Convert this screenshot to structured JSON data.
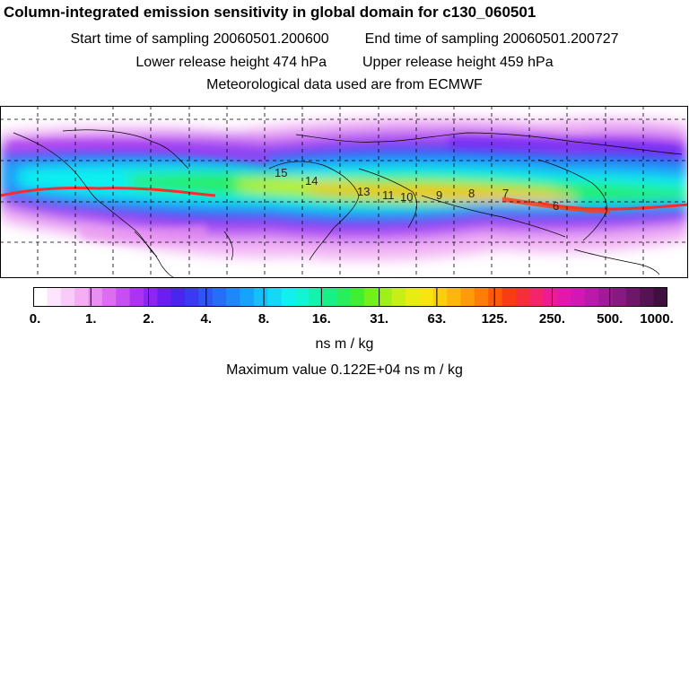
{
  "title": "Column-integrated emission sensitivity in global domain for c130_060501",
  "header": {
    "start_label": "Start time of sampling 20060501.200600",
    "end_label": "End time of sampling 20060501.200727",
    "lower_label": "Lower release height  474 hPa",
    "upper_label": "Upper release height  459 hPa",
    "met_label": "Meteorological data used are from ECMWF"
  },
  "map": {
    "track_color": "#ff2a2a",
    "timestamp_labels": [
      "15",
      "14",
      "13",
      "11",
      "10",
      "9",
      "8",
      "7",
      "6"
    ],
    "grid": "dashed"
  },
  "colorbar": {
    "colors": [
      "#ffffff",
      "#fde6fd",
      "#f9cbf9",
      "#f4aef4",
      "#e98ff0",
      "#dc6cf0",
      "#c74ff1",
      "#ad33f2",
      "#8e26f2",
      "#6a1ef2",
      "#4a25f0",
      "#3a3af2",
      "#2f55f4",
      "#256ef6",
      "#1f88f8",
      "#19a2f9",
      "#16bff8",
      "#12d9f5",
      "#0ff0f0",
      "#10f5d3",
      "#12f3ad",
      "#17f086",
      "#26ee5f",
      "#41ee33",
      "#74ef1e",
      "#9fef18",
      "#c6ef14",
      "#e6ed10",
      "#f8e50d",
      "#fbcf0b",
      "#fcb70a",
      "#fd9b08",
      "#fd7d08",
      "#fd5b0b",
      "#fb3b16",
      "#f82d3a",
      "#f4236a",
      "#ee1b93",
      "#e417ac",
      "#d018b4",
      "#b91aaa",
      "#a01b97",
      "#861a80",
      "#6d1769",
      "#551354",
      "#3f0f40"
    ],
    "ticks": [
      "0.",
      "1.",
      "2.",
      "4.",
      "8.",
      "16.",
      "31.",
      "63.",
      "125.",
      "250.",
      "500.",
      "1000."
    ]
  },
  "unit_label": "ns m / kg",
  "max_label": "Maximum value  0.122E+04 ns m / kg"
}
